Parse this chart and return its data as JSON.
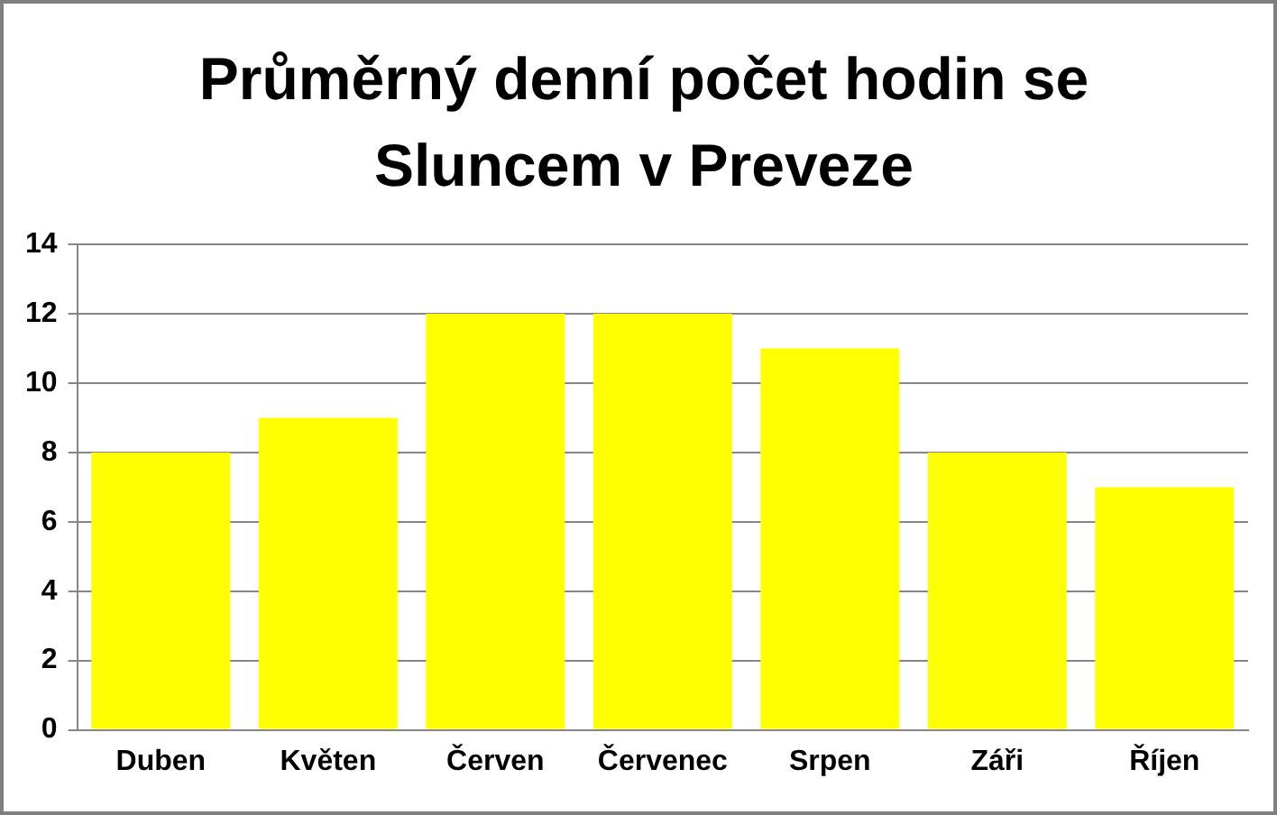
{
  "chart_data": {
    "type": "bar",
    "title": "Průměrný denní počet hodin se Sluncem v Preveze",
    "categories": [
      "Duben",
      "Květen",
      "Červen",
      "Červenec",
      "Srpen",
      "Záři",
      "Říjen"
    ],
    "values": [
      8,
      9,
      12,
      12,
      11,
      8,
      7
    ],
    "color": "#ffff00",
    "ylim": [
      0,
      14
    ],
    "yticks": [
      0,
      2,
      4,
      6,
      8,
      10,
      12,
      14
    ],
    "grid": "y",
    "legend": false
  }
}
